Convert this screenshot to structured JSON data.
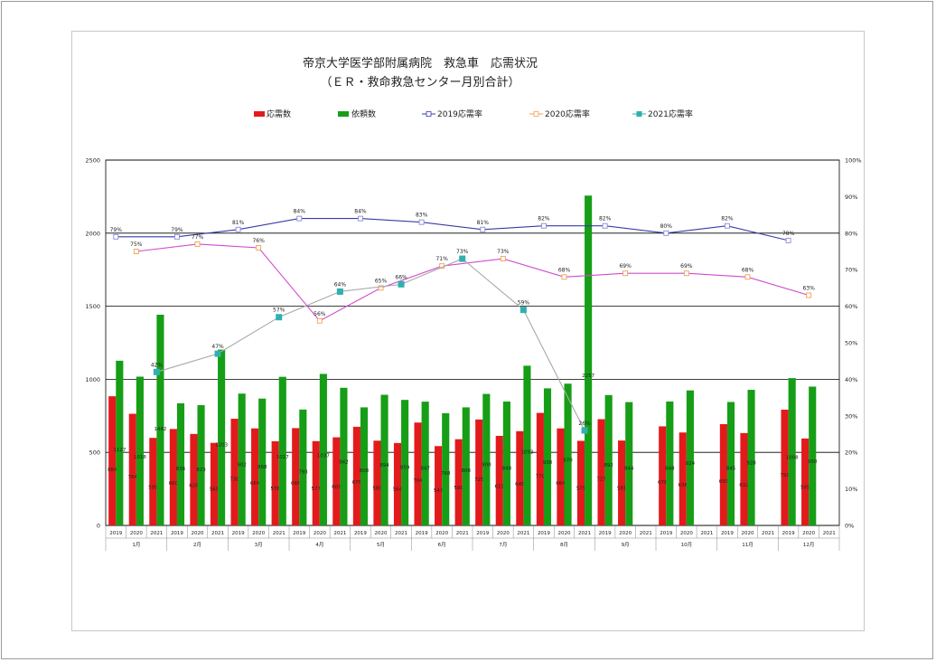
{
  "chart_data": {
    "type": "bar",
    "title": "帝京大学医学部附属病院　救急車　応需状況",
    "subtitle": "（ＥＲ・救命救急センター月別合計）",
    "legend": [
      "応需数",
      "依頼数",
      "2019応需率",
      "2020応需率",
      "2021応需率"
    ],
    "legend_position": "top",
    "grid": true,
    "y_left": {
      "min": 0,
      "max": 2500,
      "ticks": [
        "0",
        "500",
        "1000",
        "1500",
        "2000",
        "2500"
      ]
    },
    "y_right": {
      "min": 0,
      "max": 100,
      "ticks": [
        "0%",
        "10%",
        "20%",
        "30%",
        "40%",
        "50%",
        "60%",
        "70%",
        "80%",
        "90%",
        "100%"
      ]
    },
    "years": [
      "2019",
      "2020",
      "2021"
    ],
    "months": [
      "1月",
      "2月",
      "3月",
      "4月",
      "5月",
      "6月",
      "7月",
      "8月",
      "9月",
      "10月",
      "11月",
      "12月"
    ],
    "colors": {
      "response": "#e31a1c",
      "request": "#169e16",
      "rate2019": "#3a3aa8",
      "rate2020": "#d04bd0",
      "rate2021": "#a8a8a8",
      "marker2019": "#8a8ad8",
      "marker2020": "#f0a050",
      "marker2021": "#30b0b0"
    },
    "series": [
      {
        "name": "応需数",
        "values": [
          884,
          764,
          599,
          660,
          626,
          565,
          730,
          664,
          576,
          666,
          577,
          603,
          675,
          580,
          564,
          704,
          543,
          590,
          725,
          613,
          645,
          770,
          664,
          579,
          727,
          581,
          null,
          678,
          636,
          null,
          693,
          632,
          null,
          792,
          595,
          null
        ]
      },
      {
        "name": "依頼数",
        "values": [
          1127,
          1018,
          1442,
          836,
          823,
          1203,
          902,
          868,
          1017,
          793,
          1037,
          942,
          808,
          894,
          859,
          847,
          768,
          808,
          900,
          848,
          1093,
          938,
          970,
          2257,
          892,
          844,
          null,
          848,
          924,
          null,
          845,
          928,
          null,
          1008,
          950,
          null
        ]
      },
      {
        "name": "2019応需率",
        "values": [
          79,
          null,
          null,
          79,
          null,
          null,
          81,
          null,
          null,
          84,
          null,
          null,
          84,
          null,
          null,
          83,
          null,
          null,
          81,
          null,
          null,
          82,
          null,
          null,
          82,
          null,
          null,
          80,
          null,
          null,
          82,
          null,
          null,
          78,
          null,
          null
        ]
      },
      {
        "name": "2020応需率",
        "values": [
          null,
          75,
          null,
          null,
          77,
          null,
          null,
          76,
          null,
          null,
          56,
          null,
          null,
          65,
          null,
          null,
          71,
          null,
          null,
          73,
          null,
          null,
          68,
          null,
          null,
          69,
          null,
          null,
          69,
          null,
          null,
          68,
          null,
          null,
          63,
          null
        ]
      },
      {
        "name": "2021応需率",
        "values": [
          null,
          null,
          42,
          null,
          null,
          47,
          null,
          null,
          57,
          null,
          null,
          64,
          null,
          null,
          66,
          null,
          null,
          73,
          null,
          null,
          59,
          null,
          null,
          26,
          null,
          null,
          null,
          null,
          null,
          null,
          null,
          null,
          null,
          null,
          null,
          null
        ]
      }
    ],
    "bar_labels_response": [
      "884",
      "764",
      "599",
      "660",
      "626",
      "565",
      "730",
      "664",
      "576",
      "666",
      "577",
      "603",
      "675",
      "580",
      "564",
      "704",
      "543",
      "590",
      "725",
      "613",
      "645",
      "770",
      "664",
      "579",
      "727",
      "581",
      "",
      "678",
      "636",
      "",
      "693",
      "632",
      "",
      "792",
      "595",
      ""
    ],
    "bar_labels_request": [
      "1127",
      "1018",
      "1442",
      "836",
      "823",
      "1203",
      "902",
      "868",
      "1017",
      "793",
      "1037",
      "942",
      "808",
      "894",
      "859",
      "847",
      "768",
      "808",
      "900",
      "848",
      "1093",
      "938",
      "970",
      "2257",
      "892",
      "844",
      "",
      "848",
      "924",
      "",
      "845",
      "928",
      "",
      "1008",
      "950",
      ""
    ],
    "rate_labels": {
      "2019": [
        "79%",
        "79%",
        "81%",
        "84%",
        "84%",
        "83%",
        "81%",
        "82%",
        "82%",
        "80%",
        "82%",
        "78%"
      ],
      "2020": [
        "75%",
        "77%",
        "76%",
        "56%",
        "65%",
        "71%",
        "73%",
        "68%",
        "69%",
        "69%",
        "68%",
        "63%"
      ],
      "2021": [
        "42%",
        "47%",
        "57%",
        "64%",
        "66%",
        "73%",
        "59%",
        "26%"
      ]
    }
  }
}
